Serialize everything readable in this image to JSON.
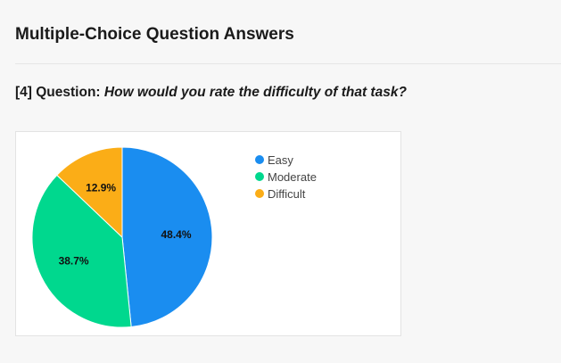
{
  "page": {
    "title": "Multiple-Choice Question Answers"
  },
  "question": {
    "prefix": "[4] Question:",
    "text": "How would you rate the difficulty of that task?"
  },
  "chart_data": {
    "type": "pie",
    "legend_position": "right",
    "slices": [
      {
        "label": "Easy",
        "value": 48.4,
        "display": "48.4%",
        "color": "#1a8df0"
      },
      {
        "label": "Moderate",
        "value": 38.7,
        "display": "38.7%",
        "color": "#00d88e"
      },
      {
        "label": "Difficult",
        "value": 12.9,
        "display": "12.9%",
        "color": "#fbad17"
      }
    ]
  }
}
